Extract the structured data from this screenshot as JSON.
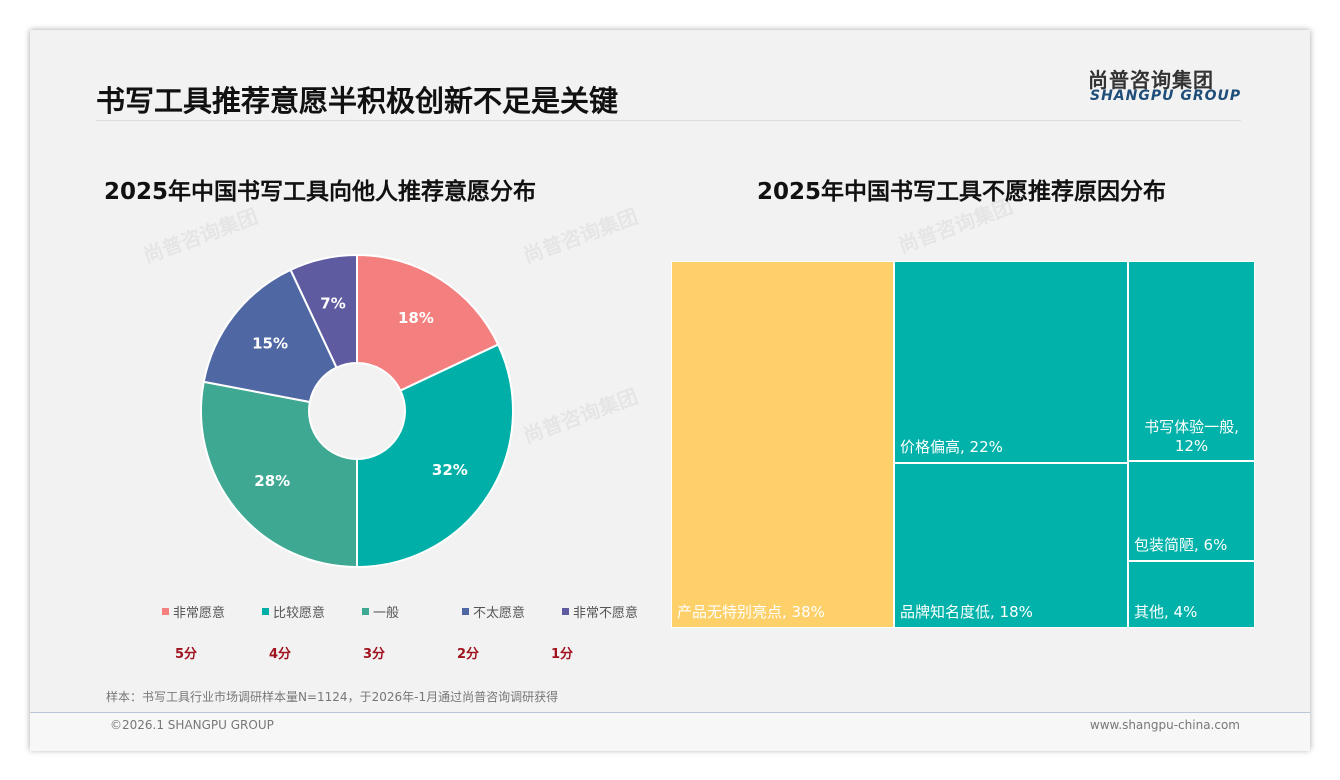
{
  "header": {
    "title": "书写工具推荐意愿半积极创新不足是关键",
    "logo_cn": "尚普咨询集团",
    "logo_en": "SHANGPU GROUP"
  },
  "chart_data": [
    {
      "type": "pie",
      "title": "2025年中国书写工具向他人推荐意愿分布",
      "categories": [
        "非常愿意",
        "比较愿意",
        "一般",
        "不太愿意",
        "非常不愿意"
      ],
      "values": [
        18,
        32,
        28,
        15,
        7
      ],
      "labels": [
        "18%",
        "32%",
        "28%",
        "15%",
        "7%"
      ],
      "scores": [
        "5分",
        "4分",
        "3分",
        "2分",
        "1分"
      ],
      "colors": [
        "#f47f7f",
        "#00b0a8",
        "#3fa892",
        "#4f67a3",
        "#5e5ba1"
      ],
      "legend": "bottom"
    },
    {
      "type": "treemap",
      "title": "2025年中国书写工具不愿推荐原因分布",
      "categories": [
        "产品无特别亮点",
        "价格偏高",
        "品牌知名度低",
        "书写体验一般",
        "包装简陋",
        "其他"
      ],
      "values": [
        38,
        22,
        18,
        12,
        6,
        4
      ],
      "labels": [
        "产品无特别亮点, 38%",
        "价格偏高, 22%",
        "品牌知名度低, 18%",
        "书写体验一般, 12%",
        "包装简陋, 6%",
        "其他, 4%"
      ],
      "colors": [
        "#fdd06a",
        "#00b2a9"
      ]
    }
  ],
  "footer": {
    "note": "样本：书写工具行业市场调研样本量N=1124，于2026年-1月通过尚普咨询调研获得",
    "copyright": "©2026.1 SHANGPU GROUP",
    "website": "www.shangpu-china.com"
  }
}
